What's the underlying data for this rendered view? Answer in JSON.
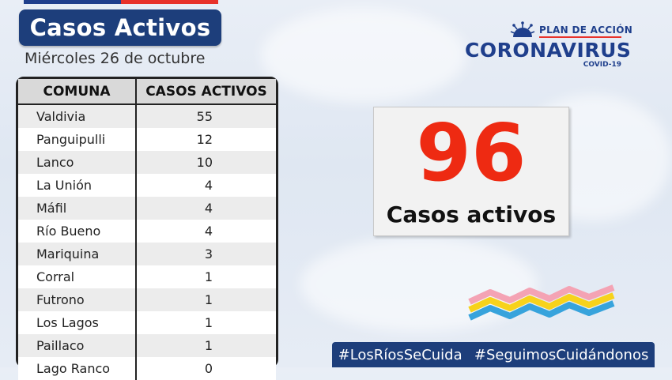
{
  "header": {
    "title": "Casos Activos",
    "date": "Miércoles 26 de octubre"
  },
  "table": {
    "columns": [
      "COMUNA",
      "CASOS ACTIVOS"
    ],
    "rows": [
      [
        "Valdivia",
        "55"
      ],
      [
        "Panguipulli",
        "12"
      ],
      [
        "Lanco",
        "10"
      ],
      [
        "La Unión",
        "4"
      ],
      [
        "Máfil",
        "4"
      ],
      [
        "Río Bueno",
        "4"
      ],
      [
        "Mariquina",
        "3"
      ],
      [
        "Corral",
        "1"
      ],
      [
        "Futrono",
        "1"
      ],
      [
        "Los Lagos",
        "1"
      ],
      [
        "Paillaco",
        "1"
      ],
      [
        "Lago Ranco",
        "0"
      ]
    ]
  },
  "logo": {
    "plan": "PLAN DE ACCIÓN",
    "word": "CORONAVIRUS",
    "sub": "COVID-19"
  },
  "summary": {
    "value": "96",
    "label": "Casos activos"
  },
  "footer": {
    "tags": [
      "#LosRíosSeCuida",
      "#SeguimosCuidándonos"
    ]
  },
  "colors": {
    "navy": "#1d3e7b",
    "accent_red": "#ee2a12",
    "wave_pink": "#f4a3b4",
    "wave_yellow": "#f7d21b",
    "wave_blue": "#37a3dc"
  }
}
